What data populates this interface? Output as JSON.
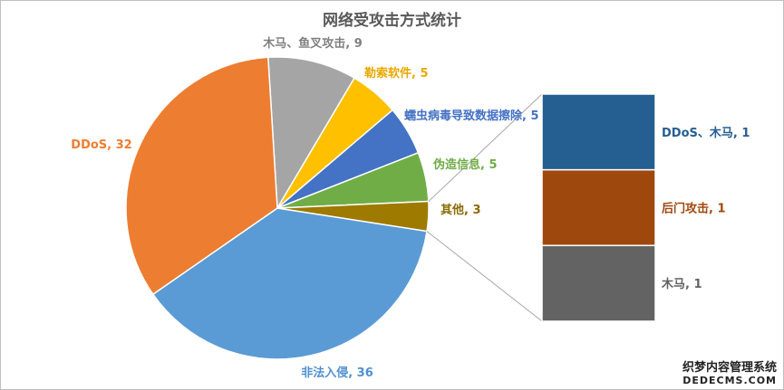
{
  "chart_data": {
    "type": "pie",
    "title": "网络受攻击方式统计",
    "slices": [
      {
        "label": "木马、鱼叉攻击",
        "value": 9,
        "color": "#A5A5A5",
        "label_color": "#808080"
      },
      {
        "label": "勒索软件",
        "value": 5,
        "color": "#FFC000",
        "label_color": "#E8A800"
      },
      {
        "label": "蠕虫病毒导致数据擦除",
        "value": 5,
        "color": "#4472C4",
        "label_color": "#4472C4"
      },
      {
        "label": "伪造信息",
        "value": 5,
        "color": "#70AD47",
        "label_color": "#70AD47"
      },
      {
        "label": "其他",
        "value": 3,
        "color": "#9E7A00",
        "label_color": "#8A6A00"
      },
      {
        "label": "非法入侵",
        "value": 36,
        "color": "#5B9BD5",
        "label_color": "#4F8FCF"
      },
      {
        "label": "DDoS",
        "value": 32,
        "color": "#ED7D31",
        "label_color": "#ED7D31"
      }
    ],
    "breakdown_of": "其他",
    "breakdown": [
      {
        "label": "DDoS、木马",
        "value": 1,
        "color": "#255E91",
        "label_color": "#255E91"
      },
      {
        "label": "后门攻击",
        "value": 1,
        "color": "#9E480E",
        "label_color": "#9E480E"
      },
      {
        "label": "木马",
        "value": 1,
        "color": "#636363",
        "label_color": "#636363"
      }
    ]
  },
  "watermark": {
    "line1": "织梦内容管理系统",
    "line2": "DEDECMS.COM"
  }
}
